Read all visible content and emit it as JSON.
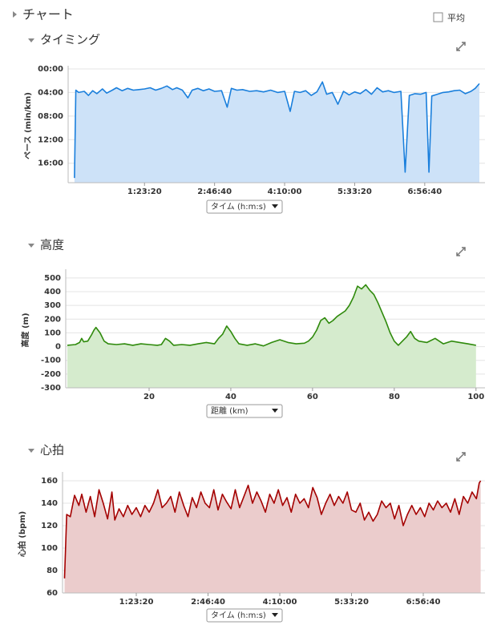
{
  "header": {
    "title": "チャート",
    "checkbox_label": "平均"
  },
  "chart_data": [
    {
      "type": "area",
      "title": "タイミング",
      "ylabel": "ペース (min/km)",
      "x_selector": "タイム (h:m:s)",
      "color": "#1a7fdc",
      "fill_color": "#cde2f8",
      "y_inverted": true,
      "grid": true,
      "xlim": [
        -450,
        29300
      ],
      "ylim": [
        0,
        19.3
      ],
      "xticks": [
        {
          "value": 5000,
          "label": "1:23:20"
        },
        {
          "value": 10000,
          "label": "2:46:40"
        },
        {
          "value": 15000,
          "label": "4:10:00"
        },
        {
          "value": 20000,
          "label": "5:33:20"
        },
        {
          "value": 25000,
          "label": "6:56:40"
        }
      ],
      "yticks": [
        {
          "value": 0,
          "label": "00:00"
        },
        {
          "value": 4,
          "label": "04:00"
        },
        {
          "value": 8,
          "label": "08:00"
        },
        {
          "value": 12,
          "label": "12:00"
        },
        {
          "value": 16,
          "label": "16:00"
        }
      ],
      "x": [
        0,
        100,
        300,
        700,
        1000,
        1300,
        1600,
        2000,
        2300,
        2700,
        3000,
        3400,
        3800,
        4200,
        4600,
        5000,
        5400,
        5800,
        6200,
        6600,
        7000,
        7300,
        7700,
        8100,
        8400,
        8800,
        9200,
        9600,
        10000,
        10500,
        10900,
        11200,
        11600,
        12000,
        12500,
        13000,
        13500,
        14000,
        14500,
        15000,
        15400,
        15700,
        16100,
        16500,
        16900,
        17300,
        17700,
        18000,
        18400,
        18800,
        19200,
        19600,
        20000,
        20400,
        20800,
        21200,
        21600,
        22000,
        22400,
        22800,
        23300,
        23600,
        23900,
        24300,
        24700,
        25100,
        25300,
        25500,
        25900,
        26300,
        26700,
        27100,
        27500,
        27900,
        28300,
        28600,
        28900
      ],
      "values": [
        18.5,
        3.6,
        4.0,
        3.8,
        4.5,
        3.7,
        4.2,
        3.4,
        4.1,
        3.6,
        3.2,
        3.7,
        3.3,
        3.6,
        3.5,
        3.4,
        3.2,
        3.6,
        3.3,
        2.9,
        3.5,
        3.2,
        3.6,
        4.9,
        3.6,
        3.3,
        3.7,
        3.4,
        3.8,
        3.7,
        6.5,
        3.3,
        3.6,
        3.5,
        3.8,
        3.7,
        3.9,
        3.6,
        4.0,
        3.8,
        7.2,
        3.8,
        4.0,
        3.7,
        4.5,
        3.9,
        2.2,
        4.3,
        4.0,
        6.0,
        3.8,
        4.4,
        3.9,
        4.2,
        3.5,
        4.3,
        3.2,
        3.9,
        3.7,
        4.0,
        3.8,
        17.5,
        4.5,
        4.2,
        4.3,
        4.0,
        17.5,
        4.6,
        4.3,
        4.0,
        3.9,
        3.7,
        3.6,
        4.2,
        3.8,
        3.3,
        2.5
      ]
    },
    {
      "type": "area",
      "title": "高度",
      "ylabel": "高度 (m)",
      "x_selector": "距離 (km)",
      "color": "#2f8a0c",
      "fill_color": "#d5ebcd",
      "y_inverted": false,
      "grid": true,
      "xlim": [
        -0.4,
        102.2
      ],
      "ylim": [
        -300,
        540
      ],
      "xticks": [
        20,
        40,
        60,
        80,
        100
      ],
      "yticks": [
        500,
        400,
        300,
        200,
        100,
        0,
        -100,
        -200,
        -300
      ],
      "x": [
        0,
        2,
        3,
        3.5,
        4,
        5,
        6,
        6.5,
        7,
        8,
        9,
        10,
        12,
        14,
        16,
        18,
        20,
        22,
        23,
        24,
        25,
        26,
        28,
        30,
        32,
        34,
        36,
        37,
        38,
        39,
        40,
        41,
        42,
        44,
        46,
        48,
        50,
        52,
        54,
        56,
        58,
        59,
        60,
        61,
        62,
        63,
        64,
        65,
        66,
        68,
        69,
        70,
        71,
        72,
        73,
        74,
        75,
        76,
        77,
        78,
        79,
        80,
        81,
        82,
        83,
        84,
        85,
        86,
        88,
        90,
        92,
        94,
        96,
        98,
        100
      ],
      "values": [
        10,
        15,
        30,
        60,
        35,
        40,
        90,
        120,
        140,
        100,
        40,
        20,
        15,
        20,
        10,
        20,
        15,
        10,
        15,
        60,
        40,
        10,
        15,
        10,
        20,
        30,
        20,
        60,
        90,
        150,
        110,
        60,
        20,
        10,
        20,
        5,
        30,
        50,
        30,
        20,
        25,
        40,
        70,
        120,
        190,
        210,
        170,
        190,
        220,
        260,
        300,
        360,
        440,
        420,
        450,
        410,
        380,
        320,
        250,
        180,
        100,
        40,
        10,
        40,
        70,
        110,
        60,
        40,
        30,
        60,
        20,
        40,
        30,
        20,
        10
      ]
    },
    {
      "type": "area",
      "title": "心拍",
      "ylabel": "心拍 (bpm)",
      "x_selector": "タイム (h:m:s)",
      "color": "#a40000",
      "fill_color": "#ebcccc",
      "y_inverted": false,
      "grid": true,
      "xlim": [
        -140,
        29300
      ],
      "ylim": [
        60,
        165
      ],
      "xticks": [
        {
          "value": 5000,
          "label": "1:23:20"
        },
        {
          "value": 10000,
          "label": "2:46:40"
        },
        {
          "value": 15000,
          "label": "4:10:00"
        },
        {
          "value": 20000,
          "label": "5:33:20"
        },
        {
          "value": 25000,
          "label": "6:56:40"
        }
      ],
      "yticks": [
        160,
        140,
        120,
        100,
        80,
        60
      ],
      "x": [
        0,
        150,
        400,
        700,
        1000,
        1200,
        1500,
        1800,
        2100,
        2400,
        2700,
        3000,
        3300,
        3500,
        3800,
        4100,
        4400,
        4700,
        5000,
        5300,
        5600,
        5900,
        6200,
        6500,
        6800,
        7100,
        7400,
        7700,
        8000,
        8300,
        8600,
        8900,
        9200,
        9500,
        9800,
        10100,
        10400,
        10700,
        11000,
        11300,
        11600,
        11900,
        12200,
        12500,
        12800,
        13100,
        13400,
        13700,
        14000,
        14300,
        14600,
        14900,
        15200,
        15500,
        15800,
        16100,
        16400,
        16700,
        17000,
        17300,
        17600,
        17900,
        18200,
        18500,
        18800,
        19100,
        19400,
        19700,
        20000,
        20300,
        20600,
        20900,
        21200,
        21500,
        21800,
        22100,
        22400,
        22700,
        23000,
        23300,
        23600,
        23900,
        24200,
        24500,
        24800,
        25100,
        25400,
        25700,
        26000,
        26300,
        26600,
        26900,
        27200,
        27500,
        27800,
        28100,
        28400,
        28700,
        28900,
        29000
      ],
      "values": [
        73,
        130,
        128,
        147,
        138,
        148,
        132,
        146,
        128,
        152,
        140,
        126,
        150,
        125,
        135,
        128,
        138,
        130,
        136,
        128,
        138,
        132,
        140,
        152,
        136,
        140,
        146,
        132,
        150,
        138,
        128,
        145,
        136,
        150,
        140,
        136,
        152,
        134,
        148,
        141,
        135,
        152,
        136,
        146,
        156,
        140,
        150,
        142,
        132,
        148,
        140,
        152,
        138,
        145,
        132,
        148,
        140,
        144,
        136,
        154,
        145,
        130,
        140,
        148,
        138,
        146,
        140,
        150,
        134,
        132,
        140,
        125,
        132,
        124,
        130,
        142,
        136,
        140,
        126,
        138,
        120,
        130,
        138,
        130,
        136,
        128,
        140,
        134,
        142,
        136,
        140,
        132,
        144,
        130,
        146,
        140,
        150,
        144,
        158,
        160
      ]
    }
  ]
}
